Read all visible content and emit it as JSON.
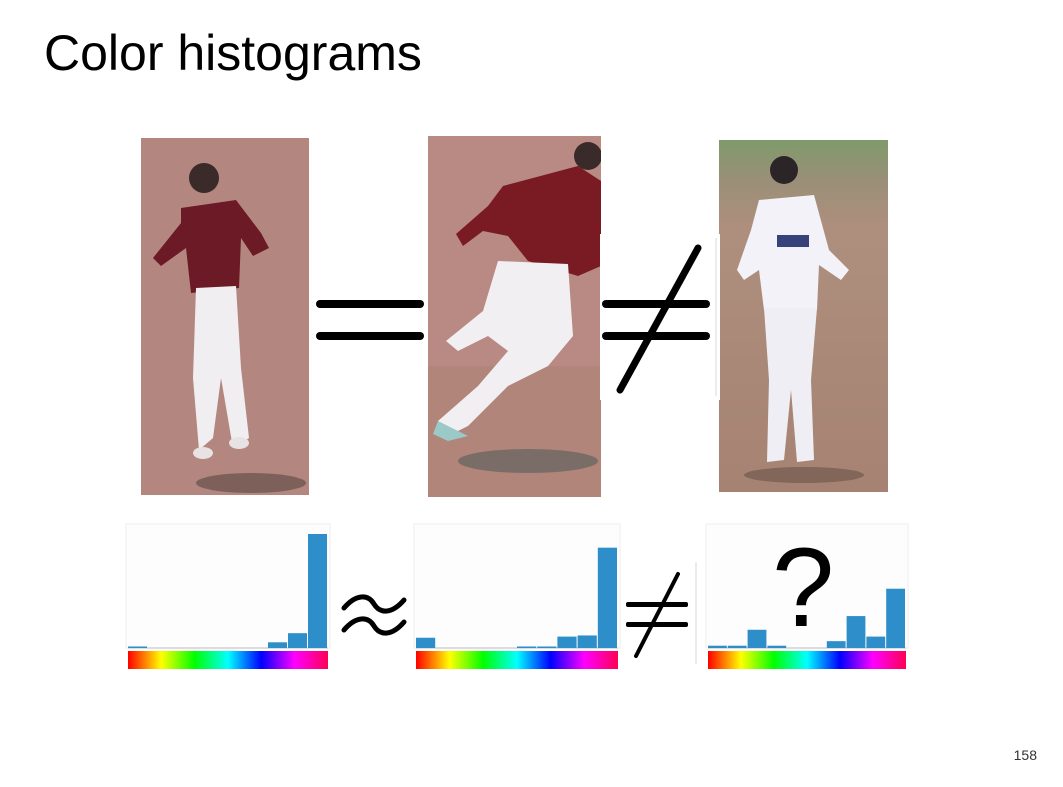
{
  "slide": {
    "title": "Color histograms",
    "page_number": "158",
    "question_mark": "?"
  },
  "photos": [
    {
      "name": "player-photo-1",
      "jersey": "#6b1a26",
      "bg": "#b88a86"
    },
    {
      "name": "player-photo-2",
      "jersey": "#7a1a22",
      "bg": "#b98a83"
    },
    {
      "name": "player-photo-3",
      "jersey": "#f2f2f8",
      "bg": "#ab8f7c"
    }
  ],
  "symbols": [
    "equals",
    "not-equals",
    "approx-equals",
    "not-equals"
  ],
  "histograms": [
    {
      "name": "histogram-1",
      "color": "#2e8ec9",
      "values": [
        0.01,
        0,
        0,
        0,
        0,
        0,
        0,
        0.05,
        0.13,
        1.0
      ]
    },
    {
      "name": "histogram-2",
      "color": "#2e8ec9",
      "values": [
        0.09,
        0,
        0,
        0,
        0,
        0.01,
        0.01,
        0.1,
        0.11,
        0.88
      ]
    },
    {
      "name": "histogram-3",
      "color": "#2e8ec9",
      "values": [
        0.02,
        0.02,
        0.16,
        0.02,
        0,
        0,
        0.06,
        0.28,
        0.1,
        0.52
      ]
    }
  ]
}
